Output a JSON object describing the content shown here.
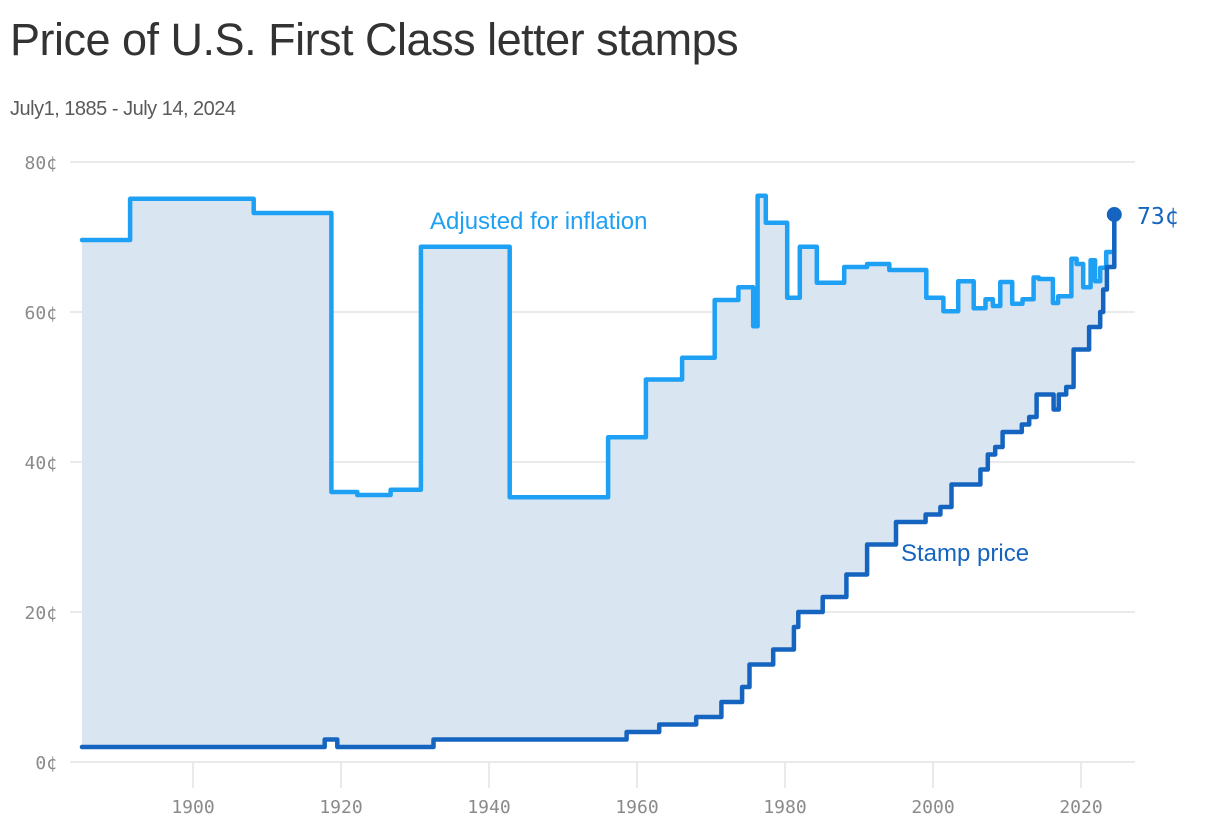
{
  "header": {
    "title": "Price of U.S. First Class letter stamps",
    "subtitle": "July1, 1885 - July 14, 2024"
  },
  "labels": {
    "inflation": "Adjusted for inflation",
    "stamp": "Stamp price",
    "end_value": "73¢"
  },
  "colors": {
    "inflation": "#1ea0f5",
    "stamp": "#1565c0",
    "fill": "#d9e5f1",
    "grid": "#e3e3e3",
    "tick": "#8a8a8a"
  },
  "chart_data": {
    "type": "line",
    "step": true,
    "title": "Price of U.S. First Class letter stamps",
    "subtitle": "July1, 1885 - July 14, 2024",
    "xlabel": "",
    "ylabel": "",
    "xlim": [
      1885,
      2024.5
    ],
    "ylim": [
      0,
      80
    ],
    "x_ticks": [
      1900,
      1920,
      1940,
      1960,
      1980,
      2000,
      2020
    ],
    "y_ticks": [
      0,
      20,
      40,
      60,
      80
    ],
    "y_tick_labels": [
      "0¢",
      "20¢",
      "40¢",
      "60¢",
      "80¢"
    ],
    "grid": true,
    "series": [
      {
        "name": "Stamp price",
        "x": [
          1885,
          1917.8,
          1919.5,
          1932.5,
          1958.6,
          1963,
          1968,
          1971.4,
          1974.2,
          1975.2,
          1978.4,
          1981.2,
          1981.8,
          1985.1,
          1988.3,
          1991.1,
          1995,
          1999,
          2001,
          2002.5,
          2006.4,
          2007.4,
          2008.4,
          2009.4,
          2012,
          2013,
          2014,
          2016.3,
          2017,
          2018,
          2019,
          2021.1,
          2022.6,
          2023,
          2023.5,
          2024.5
        ],
        "values": [
          2,
          3,
          2,
          3,
          4,
          5,
          6,
          8,
          10,
          13,
          15,
          18,
          20,
          22,
          25,
          29,
          32,
          33,
          34,
          37,
          39,
          41,
          42,
          44,
          45,
          46,
          49,
          47,
          49,
          50,
          55,
          58,
          60,
          63,
          66,
          73
        ]
      },
      {
        "name": "Adjusted for inflation",
        "x": [
          1885,
          1891.5,
          1908.2,
          1918.7,
          1922.2,
          1926.7,
          1930.8,
          1942.8,
          1956.1,
          1961.2,
          1966.1,
          1970.5,
          1973.7,
          1975.7,
          1976.3,
          1977.4,
          1980.3,
          1982,
          1984.3,
          1988,
          1991.1,
          1994.1,
          1999.1,
          2001.4,
          2003.4,
          2005.5,
          2007.1,
          2008.1,
          2009.1,
          2010.7,
          2012.1,
          2013.6,
          2014.3,
          2016.2,
          2016.9,
          2018.7,
          2019.4,
          2020.3,
          2021.3,
          2021.9,
          2022.6,
          2023.4,
          2024.5
        ],
        "values": [
          69.6,
          75.1,
          73.2,
          36.0,
          35.6,
          36.3,
          68.7,
          35.3,
          43.3,
          51.0,
          53.9,
          61.6,
          63.3,
          58.1,
          75.5,
          71.9,
          61.9,
          68.7,
          63.9,
          66.0,
          66.4,
          65.6,
          61.9,
          60.1,
          64.1,
          60.5,
          61.7,
          60.8,
          64.0,
          61.1,
          61.7,
          64.6,
          64.4,
          61.2,
          62.1,
          67.1,
          66.4,
          63.3,
          66.9,
          64.1,
          65.9,
          68.0,
          73
        ]
      }
    ],
    "annotations": [
      {
        "text": "Adjusted for inflation",
        "x": 1950,
        "y": 72
      },
      {
        "text": "Stamp price",
        "x": 2000,
        "y": 28
      },
      {
        "text": "73¢",
        "x": 2024.5,
        "y": 73
      }
    ],
    "legend": "inline labels"
  }
}
